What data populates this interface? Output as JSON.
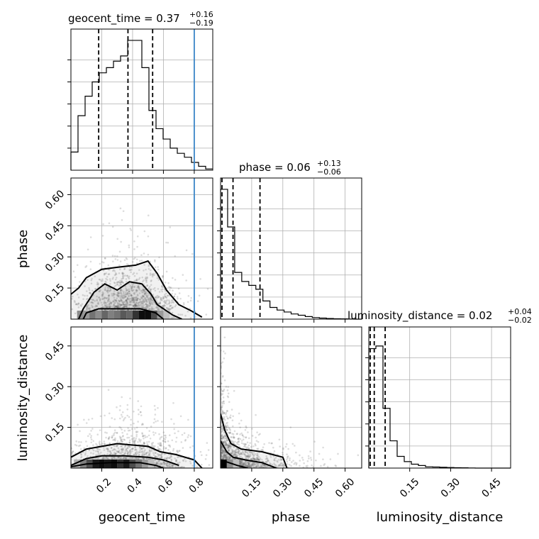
{
  "chart_data": {
    "type": "corner",
    "parameters": [
      "geocent_time",
      "phase",
      "luminosity_distance"
    ],
    "truths": {
      "geocent_time": 0.8
    },
    "colors": {
      "truth": "#3a86c8",
      "hist": "#000000",
      "points": "#666666"
    },
    "titles": [
      {
        "param": "geocent_time",
        "text": "geocent_time = 0.37",
        "sup": "+0.16",
        "sub": "−0.19"
      },
      {
        "param": "phase",
        "text": "phase = 0.06",
        "sup": "+0.13",
        "sub": "−0.06"
      },
      {
        "param": "luminosity_distance",
        "text": "luminosity_distance = 0.02",
        "sup": "+0.04",
        "sub": "−0.02"
      }
    ],
    "ranges": {
      "geocent_time": [
        0.0,
        0.92
      ],
      "phase": [
        0.0,
        0.68
      ],
      "luminosity_distance": [
        0.0,
        0.52
      ]
    },
    "ticks": {
      "geocent_time": [
        {
          "v": 0.2,
          "label": "0.2"
        },
        {
          "v": 0.4,
          "label": "0.4"
        },
        {
          "v": 0.6,
          "label": "0.6"
        },
        {
          "v": 0.8,
          "label": "0.8"
        }
      ],
      "phase": [
        {
          "v": 0.15,
          "label": "0.15"
        },
        {
          "v": 0.3,
          "label": "0.30"
        },
        {
          "v": 0.45,
          "label": "0.45"
        },
        {
          "v": 0.6,
          "label": "0.60"
        }
      ],
      "luminosity_distance": [
        {
          "v": 0.15,
          "label": "0.15"
        },
        {
          "v": 0.3,
          "label": "0.30"
        },
        {
          "v": 0.45,
          "label": "0.45"
        }
      ]
    },
    "quantiles": {
      "geocent_time": [
        0.18,
        0.37,
        0.53
      ],
      "phase": [
        0.0,
        0.06,
        0.19
      ],
      "luminosity_distance": [
        0.0,
        0.02,
        0.06
      ]
    },
    "hist_geocent_time": {
      "edges": [
        0.0,
        0.046,
        0.092,
        0.138,
        0.184,
        0.23,
        0.276,
        0.322,
        0.368,
        0.414,
        0.46,
        0.506,
        0.552,
        0.598,
        0.644,
        0.69,
        0.736,
        0.782,
        0.828,
        0.874,
        0.92
      ],
      "counts": [
        0.14,
        0.42,
        0.57,
        0.68,
        0.75,
        0.79,
        0.84,
        0.88,
        1.0,
        1.0,
        0.79,
        0.46,
        0.32,
        0.24,
        0.17,
        0.13,
        0.1,
        0.06,
        0.03,
        0.01
      ]
    },
    "hist_phase": {
      "edges": [
        0.0,
        0.034,
        0.068,
        0.102,
        0.136,
        0.17,
        0.204,
        0.238,
        0.272,
        0.306,
        0.34,
        0.374,
        0.408,
        0.442,
        0.476,
        0.51,
        0.544,
        0.578,
        0.612,
        0.646,
        0.68
      ],
      "counts": [
        1.0,
        0.71,
        0.36,
        0.29,
        0.26,
        0.23,
        0.14,
        0.09,
        0.07,
        0.055,
        0.04,
        0.03,
        0.02,
        0.012,
        0.008,
        0.005,
        0.003,
        0.002,
        0.001,
        0.0
      ]
    },
    "hist_luminosity_distance": {
      "edges": [
        0.0,
        0.026,
        0.052,
        0.078,
        0.104,
        0.13,
        0.156,
        0.182,
        0.208,
        0.234,
        0.26,
        0.286,
        0.312,
        0.338,
        0.364,
        0.39,
        0.416,
        0.442,
        0.468,
        0.494,
        0.52
      ],
      "counts": [
        0.92,
        0.94,
        0.46,
        0.21,
        0.09,
        0.05,
        0.03,
        0.02,
        0.01,
        0.008,
        0.006,
        0.004,
        0.003,
        0.002,
        0.001,
        0.0,
        0.0,
        0.0,
        0.0,
        0.0
      ]
    },
    "scatter_summary": {
      "phase_vs_geocent_time": {
        "x_center": 0.38,
        "x_spread": 0.16,
        "y_scale": 0.08
      },
      "luminosity_distance_vs_geocent_time": {
        "x_center": 0.38,
        "x_spread": 0.18,
        "y_scale": 0.05
      },
      "luminosity_distance_vs_phase": {
        "x_scale": 0.1,
        "y_scale": 0.035
      }
    },
    "contours": {
      "phase_vs_geocent_time": [
        [
          [
            0.0,
            0.12
          ],
          [
            0.05,
            0.15
          ],
          [
            0.1,
            0.2
          ],
          [
            0.2,
            0.24
          ],
          [
            0.3,
            0.25
          ],
          [
            0.42,
            0.26
          ],
          [
            0.5,
            0.28
          ],
          [
            0.56,
            0.22
          ],
          [
            0.62,
            0.14
          ],
          [
            0.7,
            0.07
          ],
          [
            0.78,
            0.04
          ],
          [
            0.85,
            0.01
          ]
        ],
        [
          [
            0.05,
            0.0
          ],
          [
            0.08,
            0.05
          ],
          [
            0.15,
            0.13
          ],
          [
            0.22,
            0.17
          ],
          [
            0.3,
            0.14
          ],
          [
            0.38,
            0.18
          ],
          [
            0.46,
            0.17
          ],
          [
            0.52,
            0.12
          ],
          [
            0.56,
            0.07
          ],
          [
            0.66,
            0.02
          ],
          [
            0.72,
            0.0
          ]
        ],
        [
          [
            0.08,
            0.0
          ],
          [
            0.1,
            0.03
          ],
          [
            0.18,
            0.05
          ],
          [
            0.3,
            0.05
          ],
          [
            0.45,
            0.05
          ],
          [
            0.55,
            0.03
          ],
          [
            0.6,
            0.0
          ]
        ]
      ],
      "luminosity_distance_vs_geocent_time": [
        [
          [
            0.0,
            0.04
          ],
          [
            0.1,
            0.07
          ],
          [
            0.2,
            0.08
          ],
          [
            0.3,
            0.09
          ],
          [
            0.4,
            0.085
          ],
          [
            0.5,
            0.08
          ],
          [
            0.58,
            0.06
          ],
          [
            0.68,
            0.05
          ],
          [
            0.8,
            0.03
          ],
          [
            0.85,
            0.0
          ]
        ],
        [
          [
            0.0,
            0.01
          ],
          [
            0.1,
            0.035
          ],
          [
            0.2,
            0.045
          ],
          [
            0.35,
            0.045
          ],
          [
            0.5,
            0.04
          ],
          [
            0.6,
            0.03
          ],
          [
            0.7,
            0.01
          ]
        ],
        [
          [
            0.0,
            0.005
          ],
          [
            0.1,
            0.015
          ],
          [
            0.25,
            0.02
          ],
          [
            0.45,
            0.02
          ],
          [
            0.55,
            0.01
          ],
          [
            0.6,
            0.0
          ]
        ]
      ],
      "luminosity_distance_vs_phase": [
        [
          [
            0.0,
            0.2
          ],
          [
            0.02,
            0.14
          ],
          [
            0.05,
            0.09
          ],
          [
            0.1,
            0.07
          ],
          [
            0.2,
            0.06
          ],
          [
            0.3,
            0.04
          ],
          [
            0.32,
            0.0
          ]
        ],
        [
          [
            0.0,
            0.1
          ],
          [
            0.03,
            0.06
          ],
          [
            0.06,
            0.04
          ],
          [
            0.12,
            0.03
          ],
          [
            0.2,
            0.02
          ],
          [
            0.27,
            0.0
          ]
        ],
        [
          [
            0.0,
            0.03
          ],
          [
            0.04,
            0.02
          ],
          [
            0.08,
            0.01
          ],
          [
            0.13,
            0.0
          ]
        ]
      ]
    },
    "density_cells": {
      "phase_vs_geocent_time": [
        {
          "x0": 0.04,
          "x1": 0.08,
          "shade": 0.55
        },
        {
          "x0": 0.08,
          "x1": 0.12,
          "shade": 0.6
        },
        {
          "x0": 0.12,
          "x1": 0.16,
          "shade": 0.45
        },
        {
          "x0": 0.16,
          "x1": 0.2,
          "shade": 0.55
        },
        {
          "x0": 0.2,
          "x1": 0.24,
          "shade": 0.4
        },
        {
          "x0": 0.24,
          "x1": 0.28,
          "shade": 0.5
        },
        {
          "x0": 0.28,
          "x1": 0.32,
          "shade": 0.45
        },
        {
          "x0": 0.32,
          "x1": 0.36,
          "shade": 0.35
        },
        {
          "x0": 0.36,
          "x1": 0.4,
          "shade": 0.4
        },
        {
          "x0": 0.4,
          "x1": 0.44,
          "shade": 0.2
        },
        {
          "x0": 0.44,
          "x1": 0.48,
          "shade": 0.05
        },
        {
          "x0": 0.48,
          "x1": 0.52,
          "shade": 0.05
        },
        {
          "x0": 0.52,
          "x1": 0.56,
          "shade": 0.3
        },
        {
          "x0": 0.56,
          "x1": 0.6,
          "shade": 0.6
        },
        {
          "x0": 0.6,
          "x1": 0.64,
          "shade": 0.75
        }
      ],
      "luminosity_distance_vs_geocent_time": [
        {
          "x0": 0.02,
          "x1": 0.06,
          "shade": 0.7
        },
        {
          "x0": 0.06,
          "x1": 0.1,
          "shade": 0.5
        },
        {
          "x0": 0.1,
          "x1": 0.14,
          "shade": 0.3
        },
        {
          "x0": 0.14,
          "x1": 0.18,
          "shade": 0.1
        },
        {
          "x0": 0.18,
          "x1": 0.22,
          "shade": 0.05
        },
        {
          "x0": 0.22,
          "x1": 0.26,
          "shade": 0.1
        },
        {
          "x0": 0.26,
          "x1": 0.3,
          "shade": 0.05
        },
        {
          "x0": 0.3,
          "x1": 0.34,
          "shade": 0.2
        },
        {
          "x0": 0.34,
          "x1": 0.38,
          "shade": 0.1
        },
        {
          "x0": 0.38,
          "x1": 0.42,
          "shade": 0.3
        },
        {
          "x0": 0.42,
          "x1": 0.46,
          "shade": 0.45
        },
        {
          "x0": 0.46,
          "x1": 0.5,
          "shade": 0.6
        },
        {
          "x0": 0.5,
          "x1": 0.54,
          "shade": 0.75
        }
      ],
      "luminosity_distance_vs_phase": [
        {
          "x0": 0.0,
          "x1": 0.03,
          "shade": 0.0
        },
        {
          "x0": 0.03,
          "x1": 0.06,
          "shade": 0.55
        },
        {
          "x0": 0.06,
          "x1": 0.09,
          "shade": 0.75
        }
      ]
    }
  }
}
